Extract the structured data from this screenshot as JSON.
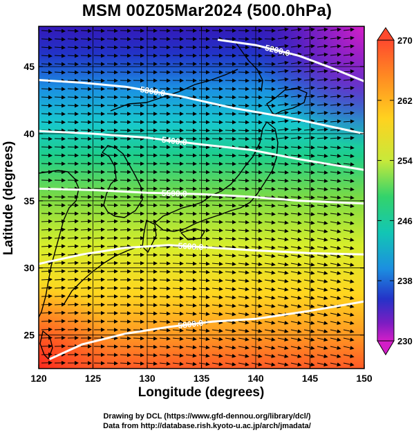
{
  "title": "MSM 00Z05Mar2024 (500.0hPa)",
  "x_axis": {
    "label": "Longitude (degrees)",
    "ticks": [
      120,
      125,
      130,
      135,
      140,
      145,
      150
    ],
    "range": [
      120,
      150
    ]
  },
  "y_axis": {
    "label": "Latitude  (degrees)",
    "ticks": [
      25,
      30,
      35,
      40,
      45
    ],
    "range": [
      22.5,
      48
    ]
  },
  "colorbar": {
    "ticks": [
      270,
      262,
      254,
      246,
      238,
      230
    ],
    "range": [
      230,
      270
    ],
    "colors": [
      "#ff4a2e",
      "#ff8a22",
      "#ffd21f",
      "#c8e93a",
      "#33d36b",
      "#12c6b4",
      "#1c8fe0",
      "#2433c8",
      "#7b1dc2",
      "#d21ec7"
    ]
  },
  "contours": [
    {
      "label": "5200.0",
      "points": [
        [
          136.5,
          47.0
        ],
        [
          140,
          46.6
        ],
        [
          144,
          45.8
        ],
        [
          147,
          44.9
        ],
        [
          150,
          43.9
        ]
      ]
    },
    {
      "label": "5300.0",
      "points": [
        [
          120,
          44.0
        ],
        [
          124,
          43.8
        ],
        [
          128,
          43.5
        ],
        [
          133,
          42.8
        ],
        [
          138,
          41.9
        ],
        [
          143,
          41.2
        ],
        [
          150,
          40.0
        ]
      ]
    },
    {
      "label": "5400.0",
      "points": [
        [
          120,
          40.2
        ],
        [
          125,
          40.0
        ],
        [
          130,
          39.7
        ],
        [
          135,
          39.2
        ],
        [
          139.5,
          38.8
        ],
        [
          144,
          38.1
        ],
        [
          150,
          37.3
        ]
      ]
    },
    {
      "label": "5500.0",
      "points": [
        [
          120,
          35.9
        ],
        [
          125,
          35.8
        ],
        [
          130,
          35.6
        ],
        [
          135,
          35.5
        ],
        [
          139.5,
          35.3
        ],
        [
          144,
          35.0
        ],
        [
          150,
          34.8
        ]
      ]
    },
    {
      "label": "5600.0",
      "points": [
        [
          120,
          30.3
        ],
        [
          124,
          31.0
        ],
        [
          128,
          31.5
        ],
        [
          132,
          31.7
        ],
        [
          136,
          31.5
        ],
        [
          140,
          31.3
        ],
        [
          145,
          31.1
        ],
        [
          150,
          31.0
        ]
      ]
    },
    {
      "label": "5800.0",
      "points": [
        [
          121,
          23.2
        ],
        [
          124,
          24.3
        ],
        [
          128,
          25.1
        ],
        [
          132,
          25.6
        ],
        [
          136,
          26.0
        ],
        [
          140,
          26.2
        ],
        [
          145,
          26.8
        ],
        [
          150,
          27.5
        ]
      ]
    }
  ],
  "credits": {
    "line1": "Drawing by DCL (https://www.gfd-dennou.org/library/dcl/)",
    "line2": "Data from http://database.rish.kyoto-u.ac.jp/arch/jmadata/"
  }
}
